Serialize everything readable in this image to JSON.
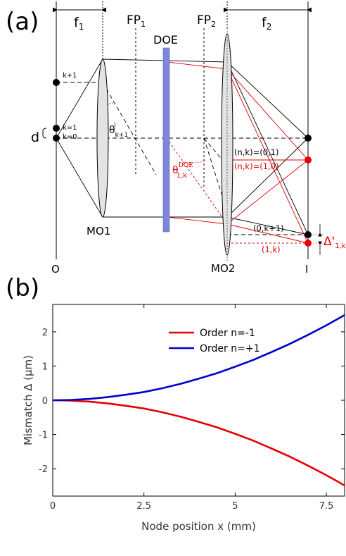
{
  "panel_a": {
    "label": "(a)",
    "f1": "f",
    "f1_sub": "1",
    "f2": "f",
    "f2_sub": "2",
    "fp1": "FP",
    "fp1_sub": "1",
    "fp2": "FP",
    "fp2_sub": "2",
    "doe": "DOE",
    "k_plus_1": "k+1",
    "k_1": "k=1",
    "k_0": "k=0",
    "d": "d",
    "theta": "θ",
    "theta_sub": "k+1",
    "theta_sup": "i",
    "theta_doe": "θ",
    "theta_doe_sub": "1,k",
    "theta_doe_sup": "DOE",
    "nk_01": "(n,k)=(0,1)",
    "nk_10": "(n,k)=(1,0)",
    "k_0kp1": "(0,k+1)",
    "k_1k": "(1,k)",
    "delta": "Δ'",
    "delta_sub": "1,k",
    "mo1": "MO1",
    "mo2": "MO2",
    "o": "O",
    "i": "I"
  },
  "panel_b": {
    "label": "(b)"
  },
  "colors": {
    "red": "#e60000",
    "blue": "#0000cc",
    "doe_fill": "#7f88d8",
    "lens_fill": "#e3e3e3"
  },
  "chart_data": {
    "type": "line",
    "xlabel": "Node position x (mm)",
    "ylabel": "Mismatch Δ (μm)",
    "xlim": [
      0,
      8
    ],
    "ylim": [
      -2.8,
      2.8
    ],
    "xticks": [
      0,
      2.5,
      5,
      7.5
    ],
    "xtick_labels": [
      "0",
      "2.5",
      "5",
      "7.5"
    ],
    "yticks": [
      -2,
      -1,
      0,
      1,
      2
    ],
    "ytick_labels": [
      "-2",
      "-1",
      "0",
      "1",
      "2"
    ],
    "grid": false,
    "legend_position": "top-center",
    "x": [
      0,
      0.5,
      1,
      1.5,
      2,
      2.5,
      3,
      3.5,
      4,
      4.5,
      5,
      5.5,
      6,
      6.5,
      7,
      7.5,
      8
    ],
    "series": [
      {
        "name": "Order n=-1",
        "color": "#e60000",
        "values": [
          0,
          -0.01,
          -0.04,
          -0.09,
          -0.16,
          -0.24,
          -0.35,
          -0.48,
          -0.63,
          -0.79,
          -0.98,
          -1.18,
          -1.41,
          -1.65,
          -1.91,
          -2.19,
          -2.49
        ]
      },
      {
        "name": "Order n=+1",
        "color": "#0000cc",
        "values": [
          0,
          0.01,
          0.04,
          0.09,
          0.16,
          0.24,
          0.35,
          0.48,
          0.63,
          0.79,
          0.98,
          1.18,
          1.41,
          1.65,
          1.91,
          2.19,
          2.49
        ]
      }
    ]
  }
}
